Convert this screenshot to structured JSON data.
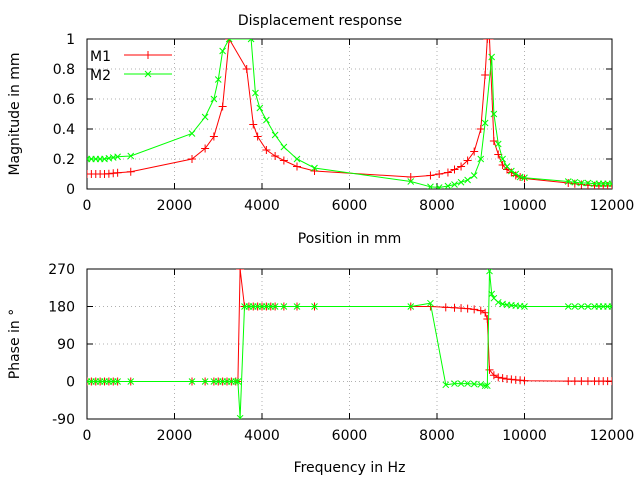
{
  "title": "Displacement response",
  "colors": {
    "M1": "#ff0000",
    "M2": "#00ff00",
    "grid": "#b0b0b0",
    "frame": "#000000"
  },
  "chart_data": [
    {
      "type": "line",
      "title": "Displacement response",
      "xlabel": "Position in mm",
      "ylabel": "Magnitude in mm",
      "xlim": [
        0,
        12000
      ],
      "ylim": [
        0,
        1
      ],
      "xticks": [
        0,
        2000,
        4000,
        6000,
        8000,
        10000,
        12000
      ],
      "yticks": [
        0,
        0.2,
        0.4,
        0.6,
        0.8,
        1
      ],
      "xtick_labels": [
        "0",
        "2000",
        "4000",
        "6000",
        "8000",
        "10000",
        "12000"
      ],
      "ytick_labels": [
        "0",
        "0.2",
        "0.4",
        "0.6",
        "0.8",
        "1"
      ],
      "grid": true,
      "legend_position": "top-left",
      "series": [
        {
          "name": "M1",
          "color": "#ff0000",
          "marker": "plus",
          "x": [
            0,
            100,
            200,
            300,
            400,
            500,
            600,
            700,
            1000,
            2400,
            2700,
            2900,
            3100,
            3250,
            3650,
            3800,
            3900,
            4100,
            4300,
            4500,
            4800,
            5200,
            7400,
            7850,
            8050,
            8250,
            8400,
            8550,
            8700,
            8850,
            9000,
            9100,
            9150,
            9200,
            9300,
            9400,
            9500,
            9600,
            9700,
            9800,
            9900,
            10000,
            11000,
            11150,
            11300,
            11450,
            11600,
            11700,
            11800,
            11900,
            12000
          ],
          "y": [
            0.1,
            0.1,
            0.1,
            0.1,
            0.1,
            0.102,
            0.105,
            0.108,
            0.115,
            0.2,
            0.27,
            0.35,
            0.55,
            1.0,
            0.8,
            0.43,
            0.35,
            0.26,
            0.22,
            0.19,
            0.15,
            0.12,
            0.08,
            0.09,
            0.1,
            0.11,
            0.13,
            0.15,
            0.19,
            0.25,
            0.4,
            0.76,
            1.0,
            1.0,
            0.32,
            0.23,
            0.16,
            0.13,
            0.11,
            0.09,
            0.08,
            0.07,
            0.04,
            0.035,
            0.03,
            0.025,
            0.022,
            0.02,
            0.02,
            0.02,
            0.02
          ]
        },
        {
          "name": "M2",
          "color": "#00ff00",
          "marker": "cross",
          "x": [
            0,
            100,
            200,
            300,
            400,
            500,
            600,
            700,
            1000,
            2400,
            2700,
            2900,
            3000,
            3100,
            3250,
            3750,
            3850,
            3950,
            4100,
            4300,
            4500,
            4800,
            5200,
            7400,
            7850,
            8050,
            8250,
            8400,
            8550,
            8700,
            8850,
            9000,
            9100,
            9250,
            9300,
            9400,
            9500,
            9600,
            9700,
            9800,
            9900,
            10000,
            11000,
            11150,
            11300,
            11450,
            11600,
            11700,
            11800,
            11900,
            12000
          ],
          "y": [
            0.2,
            0.2,
            0.2,
            0.2,
            0.2,
            0.205,
            0.21,
            0.215,
            0.22,
            0.37,
            0.48,
            0.6,
            0.73,
            0.92,
            1.0,
            1.0,
            0.64,
            0.54,
            0.46,
            0.36,
            0.28,
            0.2,
            0.14,
            0.05,
            0.015,
            0.01,
            0.02,
            0.03,
            0.045,
            0.06,
            0.09,
            0.2,
            0.44,
            0.88,
            0.5,
            0.3,
            0.2,
            0.15,
            0.12,
            0.1,
            0.08,
            0.075,
            0.05,
            0.045,
            0.04,
            0.04,
            0.035,
            0.035,
            0.035,
            0.035,
            0.035
          ]
        }
      ]
    },
    {
      "type": "line",
      "title": "",
      "xlabel": "Frequency in Hz",
      "ylabel": "Phase in °",
      "xlim": [
        0,
        12000
      ],
      "ylim": [
        -90,
        270
      ],
      "xticks": [
        0,
        2000,
        4000,
        6000,
        8000,
        10000,
        12000
      ],
      "yticks": [
        -90,
        0,
        90,
        180,
        270
      ],
      "xtick_labels": [
        "0",
        "2000",
        "4000",
        "6000",
        "8000",
        "10000",
        "12000"
      ],
      "ytick_labels": [
        "-90",
        "0",
        "90",
        "180",
        "270"
      ],
      "grid": true,
      "series": [
        {
          "name": "M1",
          "color": "#ff0000",
          "marker": "plus",
          "x": [
            0,
            100,
            200,
            300,
            400,
            500,
            600,
            700,
            1000,
            2400,
            2700,
            2900,
            3000,
            3100,
            3200,
            3300,
            3400,
            3450,
            3500,
            3600,
            3700,
            3800,
            3900,
            4000,
            4100,
            4200,
            4300,
            4500,
            4800,
            5200,
            7400,
            7850,
            8200,
            8400,
            8550,
            8700,
            8850,
            9000,
            9100,
            9150,
            9200,
            9300,
            9400,
            9500,
            9600,
            9700,
            9800,
            9900,
            10000,
            11000,
            11150,
            11300,
            11450,
            11600,
            11700,
            11800,
            11900,
            12000
          ],
          "y": [
            0,
            0,
            0,
            0,
            0,
            0,
            0,
            0,
            0,
            0,
            0,
            0,
            0,
            0,
            0,
            0,
            0,
            0,
            270,
            180,
            180,
            180,
            180,
            180,
            180,
            180,
            180,
            180,
            180,
            180,
            180,
            180,
            178,
            177,
            176,
            175,
            173,
            170,
            165,
            150,
            28,
            15,
            10,
            8,
            6,
            5,
            4,
            3,
            2,
            1,
            1,
            1,
            1,
            1,
            1,
            1,
            1,
            1
          ]
        },
        {
          "name": "M2",
          "color": "#00ff00",
          "marker": "cross",
          "x": [
            0,
            100,
            200,
            300,
            400,
            500,
            600,
            700,
            1000,
            2400,
            2700,
            2900,
            3000,
            3100,
            3200,
            3300,
            3400,
            3450,
            3500,
            3600,
            3700,
            3800,
            3900,
            4000,
            4100,
            4200,
            4300,
            4500,
            4800,
            5200,
            7400,
            7850,
            8200,
            8400,
            8550,
            8700,
            8850,
            9000,
            9100,
            9150,
            9200,
            9250,
            9300,
            9400,
            9500,
            9600,
            9700,
            9800,
            9900,
            10000,
            11000,
            11150,
            11300,
            11450,
            11600,
            11700,
            11800,
            11900,
            12000
          ],
          "y": [
            0,
            0,
            0,
            0,
            0,
            0,
            0,
            0,
            0,
            0,
            0,
            0,
            0,
            0,
            0,
            0,
            0,
            0,
            -88,
            180,
            180,
            180,
            180,
            180,
            180,
            180,
            180,
            180,
            180,
            180,
            180,
            188,
            -8,
            -5,
            -5,
            -5,
            -6,
            -7,
            -10,
            -10,
            265,
            210,
            200,
            190,
            186,
            184,
            183,
            182,
            181,
            180,
            180,
            180,
            180,
            180,
            180,
            180,
            180,
            180,
            180
          ]
        }
      ]
    }
  ]
}
